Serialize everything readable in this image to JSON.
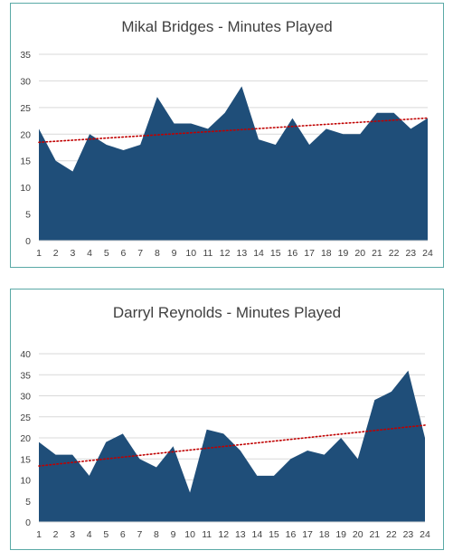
{
  "chart_data": [
    {
      "type": "area",
      "title": "Mikal Bridges - Minutes Played",
      "x": [
        1,
        2,
        3,
        4,
        5,
        6,
        7,
        8,
        9,
        10,
        11,
        12,
        13,
        14,
        15,
        16,
        17,
        18,
        19,
        20,
        21,
        22,
        23,
        24
      ],
      "series": [
        {
          "values": [
            21,
            15,
            13,
            20,
            18,
            17,
            18,
            27,
            22,
            22,
            21,
            24,
            29,
            19,
            18,
            23,
            18,
            21,
            20,
            20,
            24,
            24,
            21,
            23
          ]
        }
      ],
      "trendline": {
        "type": "linear",
        "style": "dotted",
        "color": "#c00000"
      },
      "ylim": [
        0,
        35
      ],
      "yticks": [
        0,
        5,
        10,
        15,
        20,
        25,
        30,
        35
      ],
      "grid": true,
      "fill_color": "#1f4e79"
    },
    {
      "type": "area",
      "title": "Darryl Reynolds - Minutes Played",
      "x": [
        1,
        2,
        3,
        4,
        5,
        6,
        7,
        8,
        9,
        10,
        11,
        12,
        13,
        14,
        15,
        16,
        17,
        18,
        19,
        20,
        21,
        22,
        23,
        24
      ],
      "series": [
        {
          "values": [
            19,
            16,
            16,
            11,
            19,
            21,
            15,
            13,
            18,
            7,
            22,
            21,
            17,
            11,
            11,
            15,
            17,
            16,
            20,
            15,
            29,
            31,
            36,
            20
          ]
        }
      ],
      "trendline": {
        "type": "linear",
        "style": "dotted",
        "color": "#c00000"
      },
      "ylim": [
        0,
        40
      ],
      "yticks": [
        0,
        5,
        10,
        15,
        20,
        25,
        30,
        35,
        40
      ],
      "grid": true,
      "fill_color": "#1f4e79"
    }
  ]
}
